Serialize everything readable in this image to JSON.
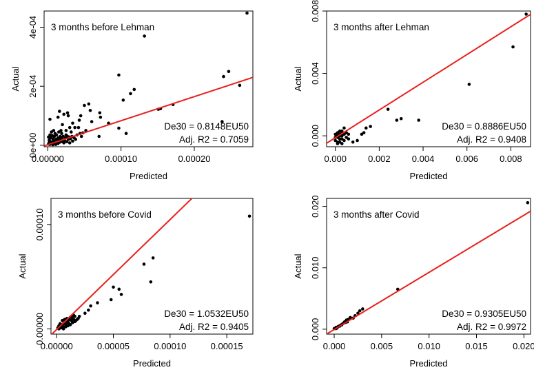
{
  "chart_data": [
    {
      "type": "scatter",
      "title": "3 months before Lehman",
      "xlabel": "Predicted",
      "ylabel": "Actual",
      "xlim": [
        -5e-06,
        0.00028
      ],
      "ylim": [
        -5e-06,
        0.000455
      ],
      "xticks": [
        0,
        0.0001,
        0.0002
      ],
      "xtick_labels": [
        "0.00000",
        "0.00010",
        "0.00020"
      ],
      "yticks": [
        0,
        0.0002,
        0.0004
      ],
      "ytick_labels": [
        "0e+00",
        "2e-04",
        "4e-04"
      ],
      "regression": {
        "slope": 0.8148,
        "intercept": 1.8e-06
      },
      "annotations": [
        "De30 = 0.8148EU50",
        "Adj. R2 = 0.7059"
      ],
      "points": [
        [
          0.000272,
          0.000448
        ],
        [
          0.000132,
          0.00037
        ],
        [
          0.000247,
          0.00025
        ],
        [
          0.00024,
          0.000233
        ],
        [
          0.000262,
          0.000203
        ],
        [
          9.7e-05,
          0.000238
        ],
        [
          0.000118,
          0.000189
        ],
        [
          0.000113,
          0.000175
        ],
        [
          0.000103,
          0.000153
        ],
        [
          0.000151,
          0.000122
        ],
        [
          0.000154,
          0.000124
        ],
        [
          0.000171,
          0.000138
        ],
        [
          9.7e-05,
          5.8e-05
        ],
        [
          0.000107,
          4e-05
        ],
        [
          0.000238,
          8e-05
        ],
        [
          8.3e-05,
          7.5e-05
        ],
        [
          7.1e-05,
          0.00011
        ],
        [
          7.2e-05,
          9.5e-05
        ],
        [
          5.8e-05,
          0.000118
        ],
        [
          5.6e-05,
          0.00014
        ],
        [
          5e-05,
          0.000135
        ],
        [
          6e-05,
          8e-05
        ],
        [
          4.5e-05,
          0.0001
        ],
        [
          4.3e-05,
          8.5e-05
        ],
        [
          7e-05,
          3e-05
        ],
        [
          4.2e-05,
          6e-05
        ],
        [
          3.7e-05,
          6e-05
        ],
        [
          3.4e-05,
          7.5e-05
        ],
        [
          3e-05,
          6e-05
        ],
        [
          2.8e-05,
          0.0001
        ],
        [
          2.7e-05,
          0.00011
        ],
        [
          2.2e-05,
          0.000105
        ],
        [
          2e-05,
          7e-05
        ],
        [
          1.6e-05,
          0.000115
        ],
        [
          1.4e-05,
          9.5e-05
        ],
        [
          3.2e-05,
          4.5e-05
        ],
        [
          2.5e-05,
          5e-05
        ],
        [
          1.8e-05,
          5e-05
        ],
        [
          3e-06,
          8.8e-05
        ],
        [
          2.8e-05,
          2e-05
        ],
        [
          2.4e-05,
          2.5e-05
        ],
        [
          2.1e-05,
          3e-05
        ],
        [
          1.9e-05,
          4e-05
        ],
        [
          1.7e-05,
          3e-05
        ],
        [
          1.5e-05,
          4.5e-05
        ],
        [
          1.4e-05,
          2.5e-05
        ],
        [
          1.2e-05,
          3.5e-05
        ],
        [
          1.1e-05,
          2e-05
        ],
        [
          1e-05,
          4e-05
        ],
        [
          9e-06,
          3e-05
        ],
        [
          8e-06,
          5e-05
        ],
        [
          7e-06,
          2.2e-05
        ],
        [
          6e-06,
          3.3e-05
        ],
        [
          5e-06,
          4.5e-05
        ],
        [
          4e-06,
          2.5e-05
        ],
        [
          3e-06,
          3.5e-05
        ],
        [
          2e-06,
          1.8e-05
        ],
        [
          1e-06,
          2.8e-05
        ],
        [
          2e-06,
          1e-05
        ],
        [
          4e-06,
          1.2e-05
        ],
        [
          6e-06,
          8e-06
        ],
        [
          8e-06,
          1.4e-05
        ],
        [
          1e-05,
          8e-06
        ],
        [
          1.2e-05,
          1.2e-05
        ],
        [
          1.4e-05,
          6e-06
        ],
        [
          1.6e-05,
          1e-05
        ],
        [
          1.8e-05,
          1.6e-05
        ],
        [
          2e-05,
          1.2e-05
        ],
        [
          2.2e-05,
          8e-06
        ],
        [
          2.6e-05,
          1.2e-05
        ],
        [
          3e-05,
          8e-06
        ],
        [
          3.4e-05,
          1.4e-05
        ],
        [
          1e-06,
          4e-06
        ],
        [
          3e-06,
          3e-06
        ],
        [
          5e-06,
          6e-06
        ],
        [
          7e-06,
          2e-06
        ],
        [
          9e-06,
          5e-06
        ],
        [
          1.1e-05,
          3e-06
        ],
        [
          1.3e-05,
          1.8e-05
        ],
        [
          1.5e-05,
          2e-05
        ],
        [
          1.7e-05,
          2.2e-05
        ],
        [
          1.9e-05,
          2.4e-05
        ],
        [
          2.1e-05,
          1.8e-05
        ],
        [
          2.3e-05,
          1.6e-05
        ],
        [
          2.5e-05,
          3.5e-05
        ],
        [
          2.7e-05,
          3e-05
        ],
        [
          2.9e-05,
          2.8e-05
        ],
        [
          3.1e-05,
          2.2e-05
        ],
        [
          3.3e-05,
          3e-05
        ],
        [
          3.6e-05,
          2.5e-05
        ],
        [
          3.8e-05,
          2e-05
        ],
        [
          4e-05,
          3.5e-05
        ],
        [
          4.4e-05,
          4e-05
        ],
        [
          4.6e-05,
          3e-05
        ],
        [
          4.8e-05,
          4.2e-05
        ],
        [
          5.2e-05,
          5e-05
        ]
      ]
    },
    {
      "type": "scatter",
      "title": "3 months after Lehman",
      "xlabel": "Predicted",
      "ylabel": "Actual",
      "xlim": [
        -0.0004,
        0.0089
      ],
      "ylim": [
        -0.0007,
        0.008
      ],
      "xticks": [
        0,
        0.002,
        0.004,
        0.006,
        0.008
      ],
      "xtick_labels": [
        "0.000",
        "0.002",
        "0.004",
        "0.006",
        "0.008"
      ],
      "yticks": [
        0,
        0.004,
        0.008
      ],
      "ytick_labels": [
        "0.000",
        "0.004",
        "0.008"
      ],
      "regression": {
        "slope": 0.8886,
        "intercept": -0.00012
      },
      "annotations": [
        "De30 = 0.8886EU50",
        "Adj. R2 = 0.9408"
      ],
      "points": [
        [
          0.0087,
          0.0078
        ],
        [
          0.0081,
          0.0057
        ],
        [
          0.0061,
          0.0033
        ],
        [
          0.0038,
          0.001
        ],
        [
          0.003,
          0.0011
        ],
        [
          0.0028,
          0.001
        ],
        [
          0.0024,
          0.0017
        ],
        [
          0.0016,
          0.0006
        ],
        [
          0.0014,
          0.0005
        ],
        [
          0.0013,
          0.0002
        ],
        [
          0.0012,
          0.0001
        ],
        [
          0.001,
          -0.0003
        ],
        [
          0.0008,
          -0.0004
        ],
        [
          0.0006,
          0.0001
        ],
        [
          0.0005,
          -0.0001
        ],
        [
          0.0004,
          0.0005
        ],
        [
          0.0003,
          -0.0002
        ],
        [
          0.0002,
          0.0003
        ],
        [
          0.0001,
          -0.0004
        ],
        [
          0.0,
          -0.0003
        ],
        [
          0.0001,
          0.0
        ],
        [
          0.0002,
          -0.0002
        ],
        [
          0.0003,
          0.0
        ],
        [
          0.0004,
          -0.0003
        ],
        [
          0.0,
          0.0001
        ],
        [
          0.0001,
          -0.0001
        ],
        [
          0.0002,
          0.0001
        ],
        [
          0.0003,
          0.0002
        ],
        [
          0.0005,
          0.0002
        ],
        [
          0.0001,
          0.0002
        ],
        [
          0.0006,
          -0.0002
        ],
        [
          0.0,
          -0.0001
        ],
        [
          0.0002,
          -0.0004
        ],
        [
          0.0003,
          -0.0005
        ],
        [
          0.0001,
          -0.0005
        ],
        [
          0.0004,
          0.0001
        ],
        [
          0.0002,
          0.0
        ],
        [
          0.0003,
          0.0003
        ]
      ]
    },
    {
      "type": "scatter",
      "title": "3 months before Covid",
      "xlabel": "Predicted",
      "ylabel": "Actual",
      "xlim": [
        -5e-06,
        0.000173
      ],
      "ylim": [
        -5e-06,
        0.000125
      ],
      "xticks": [
        0,
        5e-05,
        0.0001,
        0.00015
      ],
      "xtick_labels": [
        "0.00000",
        "0.00005",
        "0.00010",
        "0.00015"
      ],
      "yticks": [
        0,
        0.0001
      ],
      "ytick_labels": [
        "0.00000",
        "0.00010"
      ],
      "regression": {
        "slope": 1.0532,
        "intercept": -6e-07
      },
      "annotations": [
        "De30 = 1.0532EU50",
        "Adj. R2 = 0.9405"
      ],
      "points": [
        [
          0.00017,
          0.000108
        ],
        [
          8.5e-05,
          6.8e-05
        ],
        [
          8.3e-05,
          4.5e-05
        ],
        [
          7.7e-05,
          6.2e-05
        ],
        [
          5.7e-05,
          3.3e-05
        ],
        [
          5.5e-05,
          3.8e-05
        ],
        [
          5e-05,
          4e-05
        ],
        [
          4.8e-05,
          2.8e-05
        ],
        [
          3.6e-05,
          2.5e-05
        ],
        [
          3e-05,
          2.2e-05
        ],
        [
          2.8e-05,
          1.8e-05
        ],
        [
          2.5e-05,
          1.5e-05
        ],
        [
          2e-05,
          1.2e-05
        ],
        [
          1.9e-05,
          1e-05
        ],
        [
          1.8e-05,
          9e-06
        ],
        [
          1.7e-05,
          8e-06
        ],
        [
          1.6e-05,
          1.2e-05
        ],
        [
          1.5e-05,
          9e-06
        ],
        [
          1.4e-05,
          6e-06
        ],
        [
          1.3e-05,
          8e-06
        ],
        [
          1.2e-05,
          1.1e-05
        ],
        [
          1.1e-05,
          5e-06
        ],
        [
          1e-05,
          7e-06
        ],
        [
          9e-06,
          6e-06
        ],
        [
          8e-06,
          4e-06
        ],
        [
          7e-06,
          6e-06
        ],
        [
          6e-06,
          5e-06
        ],
        [
          5e-06,
          3e-06
        ],
        [
          4e-06,
          4e-06
        ],
        [
          3e-06,
          2e-06
        ],
        [
          2e-06,
          3e-06
        ],
        [
          1e-06,
          1e-06
        ],
        [
          5e-06,
          8e-06
        ],
        [
          7e-06,
          9e-06
        ],
        [
          9e-06,
          1e-05
        ],
        [
          1.1e-05,
          9e-06
        ],
        [
          1.3e-05,
          1.2e-05
        ],
        [
          1.5e-05,
          1.3e-05
        ],
        [
          3e-06,
          5e-06
        ],
        [
          6e-06,
          2e-06
        ],
        [
          8e-06,
          2e-06
        ],
        [
          1e-05,
          3e-06
        ],
        [
          1.2e-05,
          4e-06
        ],
        [
          2e-06,
          0.0
        ],
        [
          4e-06,
          1e-06
        ],
        [
          6e-06,
          0.0
        ],
        [
          1.4e-05,
          1e-05
        ],
        [
          1.6e-05,
          7e-06
        ]
      ]
    },
    {
      "type": "scatter",
      "title": "3 months after Covid",
      "xlabel": "Predicted",
      "ylabel": "Actual",
      "xlim": [
        -0.0008,
        0.0207
      ],
      "ylim": [
        -0.0008,
        0.0213
      ],
      "xticks": [
        0,
        0.005,
        0.01,
        0.015,
        0.02
      ],
      "xtick_labels": [
        "0.000",
        "0.005",
        "0.010",
        "0.015",
        "0.020"
      ],
      "yticks": [
        0,
        0.01,
        0.02
      ],
      "ytick_labels": [
        "0.000",
        "0.010",
        "0.020"
      ],
      "regression": {
        "slope": 0.9305,
        "intercept": -5e-05
      },
      "annotations": [
        "De30 = 0.9305EU50",
        "Adj. R2 = 0.9972"
      ],
      "points": [
        [
          0.0204,
          0.0206
        ],
        [
          0.0067,
          0.0065
        ],
        [
          0.003,
          0.0033
        ],
        [
          0.0027,
          0.003
        ],
        [
          0.0022,
          0.0022
        ],
        [
          0.0017,
          0.0019
        ],
        [
          0.0015,
          0.0016
        ],
        [
          0.0013,
          0.0015
        ],
        [
          0.0012,
          0.0011
        ],
        [
          0.001,
          0.001
        ],
        [
          0.0009,
          0.0009
        ],
        [
          0.0008,
          0.0007
        ],
        [
          0.0007,
          0.0007
        ],
        [
          0.0006,
          0.0005
        ],
        [
          0.0005,
          0.0005
        ],
        [
          0.0004,
          0.0004
        ],
        [
          0.0003,
          0.0002
        ],
        [
          0.0002,
          0.0003
        ],
        [
          0.0001,
          0.0001
        ],
        [
          0.0,
          0.0001
        ],
        [
          0.0002,
          0.0001
        ],
        [
          0.0011,
          0.0012
        ],
        [
          0.0014,
          0.0012
        ],
        [
          0.002,
          0.0018
        ],
        [
          0.0025,
          0.0026
        ]
      ]
    }
  ]
}
